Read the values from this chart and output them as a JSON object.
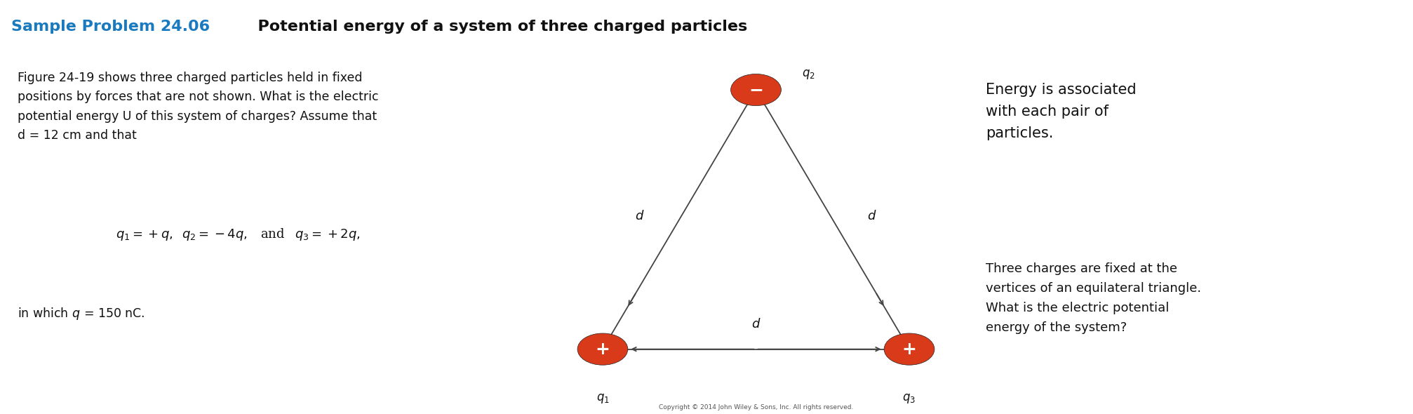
{
  "title_blue": "Sample Problem 24.06",
  "title_black": "  Potential energy of a system of three charged particles",
  "bg_beige": "#e5e0d0",
  "bg_white": "#ffffff",
  "bg_title": "#d0cfc8",
  "body_text": "Figure 24-19 shows three charged particles held in fixed\npositions by forces that are not shown. What is the electric\npotential energy U of this system of charges? Assume that\nd = 12 cm and that",
  "equation": "$q_1 = +q,\\;\\;q_2 = -4q,\\;\\;$ and $\\;\\;q_3 = +2q,$",
  "bottom_text": "in which $q$ = 150 nC.",
  "right_text1": "Energy is associated\nwith each pair of\nparticles.",
  "right_text2": "Three charges are fixed at the\nvertices of an equilateral triangle.\nWhat is the electric potential\nenergy of the system?",
  "copyright": "Copyright © 2014 John Wiley & Sons, Inc. All rights reserved.",
  "particle_color": "#d93b1a",
  "arrow_color": "#444444",
  "title_color_blue": "#1a7abf",
  "title_color_black": "#111111",
  "title_bar_color": "#c8c5b8"
}
